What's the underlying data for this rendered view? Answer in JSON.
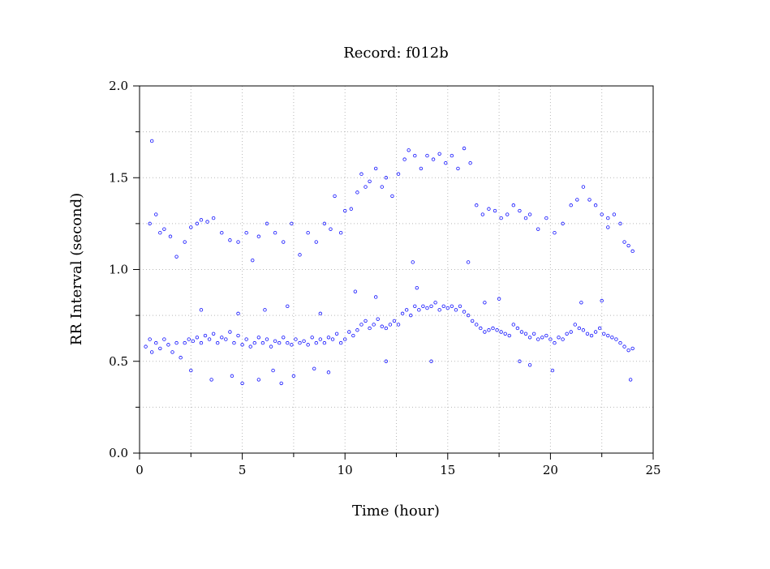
{
  "chart_data": {
    "type": "scatter",
    "title": "Record:  f012b",
    "xlabel": "Time (hour)",
    "ylabel": "RR Interval (second)",
    "xlim": [
      0,
      25
    ],
    "ylim": [
      0.0,
      2.0
    ],
    "x_ticks": [
      "0",
      "5",
      "10",
      "15",
      "20",
      "25"
    ],
    "y_ticks": [
      "0.0",
      "0.5",
      "1.0",
      "1.5",
      "2.0"
    ],
    "grid": true,
    "marker": "open-circle",
    "color": "#1010ff",
    "series": [
      {
        "values_note": "",
        "points": [
          [
            0.3,
            0.58
          ],
          [
            0.5,
            0.62
          ],
          [
            0.6,
            0.55
          ],
          [
            0.8,
            0.6
          ],
          [
            1.0,
            0.57
          ],
          [
            1.2,
            0.62
          ],
          [
            1.4,
            0.59
          ],
          [
            1.6,
            0.55
          ],
          [
            1.8,
            0.6
          ],
          [
            2.0,
            0.52
          ],
          [
            2.2,
            0.6
          ],
          [
            2.4,
            0.62
          ],
          [
            2.6,
            0.61
          ],
          [
            2.8,
            0.63
          ],
          [
            3.0,
            0.6
          ],
          [
            3.2,
            0.64
          ],
          [
            3.4,
            0.62
          ],
          [
            3.6,
            0.65
          ],
          [
            3.8,
            0.6
          ],
          [
            4.0,
            0.63
          ],
          [
            4.2,
            0.62
          ],
          [
            4.4,
            0.66
          ],
          [
            4.6,
            0.6
          ],
          [
            4.8,
            0.64
          ],
          [
            5.0,
            0.59
          ],
          [
            5.2,
            0.62
          ],
          [
            5.4,
            0.58
          ],
          [
            5.6,
            0.6
          ],
          [
            5.8,
            0.63
          ],
          [
            6.0,
            0.6
          ],
          [
            6.2,
            0.62
          ],
          [
            6.4,
            0.58
          ],
          [
            6.6,
            0.61
          ],
          [
            6.8,
            0.6
          ],
          [
            7.0,
            0.63
          ],
          [
            7.2,
            0.6
          ],
          [
            7.4,
            0.59
          ],
          [
            7.6,
            0.62
          ],
          [
            7.8,
            0.6
          ],
          [
            8.0,
            0.61
          ],
          [
            8.2,
            0.59
          ],
          [
            8.4,
            0.63
          ],
          [
            8.6,
            0.6
          ],
          [
            8.8,
            0.62
          ],
          [
            9.0,
            0.6
          ],
          [
            9.2,
            0.63
          ],
          [
            9.4,
            0.62
          ],
          [
            9.6,
            0.65
          ],
          [
            9.8,
            0.6
          ],
          [
            10.0,
            0.62
          ],
          [
            10.2,
            0.66
          ],
          [
            10.4,
            0.64
          ],
          [
            10.6,
            0.67
          ],
          [
            10.8,
            0.7
          ],
          [
            11.0,
            0.72
          ],
          [
            11.2,
            0.68
          ],
          [
            11.4,
            0.7
          ],
          [
            11.6,
            0.73
          ],
          [
            11.8,
            0.69
          ],
          [
            12.0,
            0.68
          ],
          [
            12.2,
            0.7
          ],
          [
            12.4,
            0.72
          ],
          [
            12.6,
            0.7
          ],
          [
            12.8,
            0.76
          ],
          [
            13.0,
            0.78
          ],
          [
            13.2,
            0.75
          ],
          [
            13.4,
            0.8
          ],
          [
            13.6,
            0.78
          ],
          [
            13.8,
            0.8
          ],
          [
            14.0,
            0.79
          ],
          [
            14.2,
            0.8
          ],
          [
            14.4,
            0.82
          ],
          [
            14.6,
            0.78
          ],
          [
            14.8,
            0.8
          ],
          [
            15.0,
            0.79
          ],
          [
            15.2,
            0.8
          ],
          [
            15.4,
            0.78
          ],
          [
            15.6,
            0.8
          ],
          [
            15.8,
            0.77
          ],
          [
            16.0,
            0.75
          ],
          [
            16.2,
            0.72
          ],
          [
            16.4,
            0.7
          ],
          [
            16.6,
            0.68
          ],
          [
            16.8,
            0.66
          ],
          [
            17.0,
            0.67
          ],
          [
            17.2,
            0.68
          ],
          [
            17.4,
            0.67
          ],
          [
            17.6,
            0.66
          ],
          [
            17.8,
            0.65
          ],
          [
            18.0,
            0.64
          ],
          [
            18.2,
            0.7
          ],
          [
            18.4,
            0.68
          ],
          [
            18.6,
            0.66
          ],
          [
            18.8,
            0.65
          ],
          [
            19.0,
            0.63
          ],
          [
            19.2,
            0.65
          ],
          [
            19.4,
            0.62
          ],
          [
            19.6,
            0.63
          ],
          [
            19.8,
            0.64
          ],
          [
            20.0,
            0.62
          ],
          [
            20.2,
            0.6
          ],
          [
            20.4,
            0.63
          ],
          [
            20.6,
            0.62
          ],
          [
            20.8,
            0.65
          ],
          [
            21.0,
            0.66
          ],
          [
            21.2,
            0.7
          ],
          [
            21.4,
            0.68
          ],
          [
            21.6,
            0.67
          ],
          [
            21.8,
            0.65
          ],
          [
            22.0,
            0.64
          ],
          [
            22.2,
            0.66
          ],
          [
            22.4,
            0.68
          ],
          [
            22.6,
            0.65
          ],
          [
            22.8,
            0.64
          ],
          [
            23.0,
            0.63
          ],
          [
            23.2,
            0.62
          ],
          [
            23.4,
            0.6
          ],
          [
            23.6,
            0.58
          ],
          [
            23.8,
            0.56
          ],
          [
            24.0,
            0.57
          ],
          [
            0.5,
            1.25
          ],
          [
            0.6,
            1.7
          ],
          [
            0.8,
            1.3
          ],
          [
            1.0,
            1.2
          ],
          [
            1.2,
            1.22
          ],
          [
            1.5,
            1.18
          ],
          [
            1.8,
            1.07
          ],
          [
            2.2,
            1.15
          ],
          [
            2.5,
            1.23
          ],
          [
            2.8,
            1.25
          ],
          [
            3.0,
            1.27
          ],
          [
            3.3,
            1.26
          ],
          [
            3.6,
            1.28
          ],
          [
            4.0,
            1.2
          ],
          [
            4.4,
            1.16
          ],
          [
            4.8,
            1.15
          ],
          [
            5.2,
            1.2
          ],
          [
            5.5,
            1.05
          ],
          [
            5.8,
            1.18
          ],
          [
            6.2,
            1.25
          ],
          [
            6.6,
            1.2
          ],
          [
            7.0,
            1.15
          ],
          [
            7.4,
            1.25
          ],
          [
            7.8,
            1.08
          ],
          [
            8.2,
            1.2
          ],
          [
            8.6,
            1.15
          ],
          [
            9.0,
            1.25
          ],
          [
            9.3,
            1.22
          ],
          [
            9.5,
            1.4
          ],
          [
            9.8,
            1.2
          ],
          [
            10.0,
            1.32
          ],
          [
            10.3,
            1.33
          ],
          [
            10.6,
            1.42
          ],
          [
            10.8,
            1.52
          ],
          [
            11.0,
            1.45
          ],
          [
            11.2,
            1.48
          ],
          [
            11.5,
            1.55
          ],
          [
            11.8,
            1.45
          ],
          [
            12.0,
            1.5
          ],
          [
            12.3,
            1.4
          ],
          [
            12.6,
            1.52
          ],
          [
            12.9,
            1.6
          ],
          [
            13.1,
            1.65
          ],
          [
            13.4,
            1.62
          ],
          [
            13.7,
            1.55
          ],
          [
            14.0,
            1.62
          ],
          [
            14.3,
            1.6
          ],
          [
            14.6,
            1.63
          ],
          [
            14.9,
            1.58
          ],
          [
            15.2,
            1.62
          ],
          [
            15.5,
            1.55
          ],
          [
            15.8,
            1.66
          ],
          [
            16.1,
            1.58
          ],
          [
            16.4,
            1.35
          ],
          [
            16.7,
            1.3
          ],
          [
            17.0,
            1.33
          ],
          [
            17.3,
            1.32
          ],
          [
            17.6,
            1.28
          ],
          [
            17.9,
            1.3
          ],
          [
            18.2,
            1.35
          ],
          [
            18.5,
            1.32
          ],
          [
            18.8,
            1.28
          ],
          [
            19.0,
            1.3
          ],
          [
            19.4,
            1.22
          ],
          [
            19.8,
            1.28
          ],
          [
            20.2,
            1.2
          ],
          [
            20.6,
            1.25
          ],
          [
            21.0,
            1.35
          ],
          [
            21.3,
            1.38
          ],
          [
            21.6,
            1.45
          ],
          [
            21.9,
            1.38
          ],
          [
            22.2,
            1.35
          ],
          [
            22.5,
            1.3
          ],
          [
            22.8,
            1.28
          ],
          [
            23.1,
            1.3
          ],
          [
            23.4,
            1.25
          ],
          [
            23.6,
            1.15
          ],
          [
            23.8,
            1.13
          ],
          [
            24.0,
            1.1
          ],
          [
            22.8,
            1.23
          ],
          [
            2.5,
            0.45
          ],
          [
            3.5,
            0.4
          ],
          [
            4.5,
            0.42
          ],
          [
            5.0,
            0.38
          ],
          [
            5.8,
            0.4
          ],
          [
            6.5,
            0.45
          ],
          [
            6.9,
            0.38
          ],
          [
            7.5,
            0.42
          ],
          [
            8.5,
            0.46
          ],
          [
            9.2,
            0.44
          ],
          [
            3.0,
            0.78
          ],
          [
            4.8,
            0.76
          ],
          [
            6.1,
            0.78
          ],
          [
            7.2,
            0.8
          ],
          [
            8.8,
            0.76
          ],
          [
            11.5,
            0.85
          ],
          [
            12.0,
            0.5
          ],
          [
            13.5,
            0.9
          ],
          [
            14.2,
            0.5
          ],
          [
            16.8,
            0.82
          ],
          [
            19.0,
            0.48
          ],
          [
            20.1,
            0.45
          ],
          [
            21.5,
            0.82
          ],
          [
            22.5,
            0.83
          ],
          [
            23.9,
            0.4
          ],
          [
            13.3,
            1.04
          ],
          [
            16.0,
            1.04
          ],
          [
            17.5,
            0.84
          ],
          [
            18.5,
            0.5
          ],
          [
            10.5,
            0.88
          ]
        ]
      }
    ]
  }
}
